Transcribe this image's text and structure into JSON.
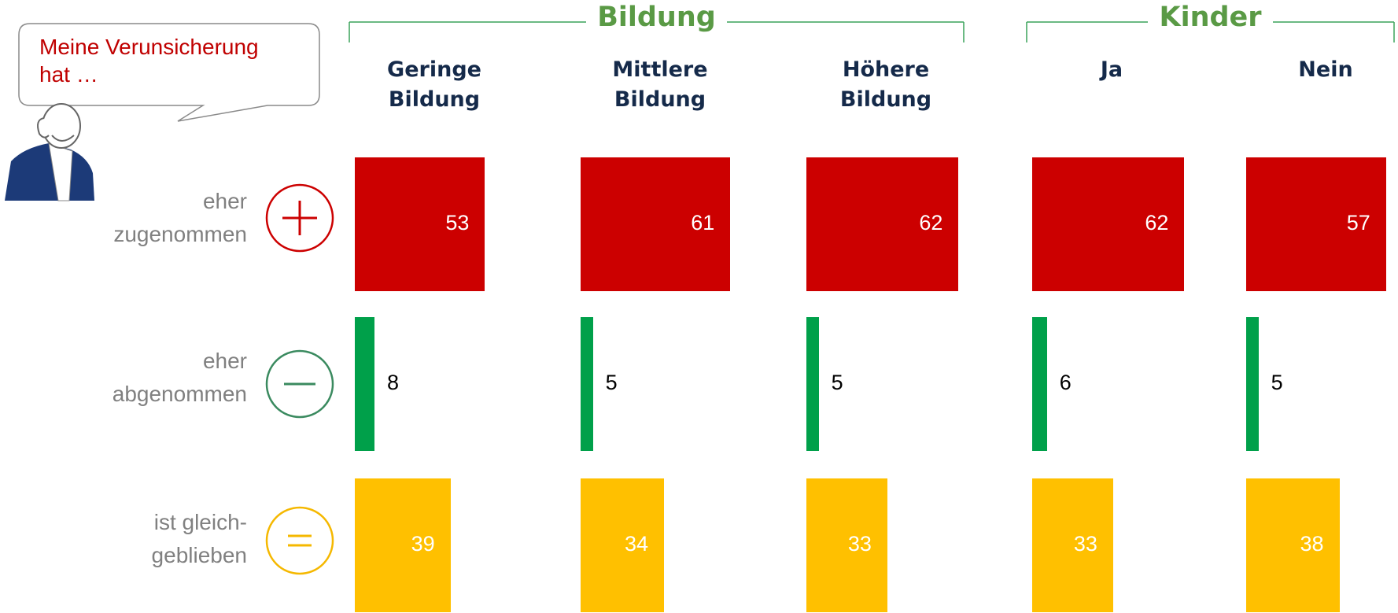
{
  "chart_data": {
    "type": "bar",
    "callout": "Meine Verunsicherung\nhat …",
    "groups": [
      {
        "name": "Bildung",
        "categories": [
          "Geringe\nBildung",
          "Mittlere\nBildung",
          "Höhere\nBildung"
        ]
      },
      {
        "name": "Kinder",
        "categories": [
          "Ja",
          "Nein"
        ]
      }
    ],
    "series": [
      {
        "name": "eher\nzugenommen",
        "color": "#cc0000",
        "label_color": "#ffffff",
        "values": [
          53,
          61,
          62,
          62,
          57
        ]
      },
      {
        "name": "eher\nabgenommen",
        "color": "#00a04a",
        "label_color": "#000000",
        "values": [
          8,
          5,
          5,
          6,
          5
        ]
      },
      {
        "name": "ist gleich-\ngeblieben",
        "color": "#ffc000",
        "label_color": "#ffffff",
        "values": [
          39,
          34,
          33,
          33,
          38
        ]
      }
    ]
  }
}
